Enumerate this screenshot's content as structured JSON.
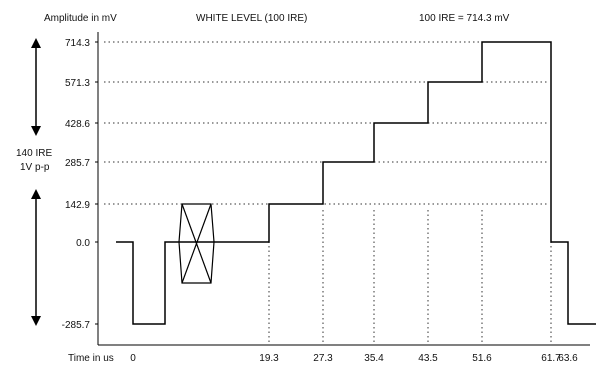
{
  "header": {
    "y_axis_label": "Amplitude in mV",
    "title": "WHITE LEVEL (100 IRE)",
    "equation": "100 IRE = 714.3 mV"
  },
  "x_axis_label": "Time in us",
  "side_label": {
    "line1": "140 IRE",
    "line2": "1V p-p"
  },
  "chart_data": {
    "type": "line",
    "y_ticks": [
      "714.3",
      "571.3",
      "428.6",
      "285.7",
      "142.9",
      "0.0",
      "-285.7"
    ],
    "x_ticks": [
      "0",
      "19.3",
      "27.3",
      "35.4",
      "43.5",
      "51.6",
      "61.7",
      "63.6"
    ],
    "ylim": [
      -285.7,
      714.3
    ],
    "staircase_levels": [
      0.0,
      142.9,
      285.7,
      428.6,
      571.3,
      714.3
    ],
    "sync_level": -285.7,
    "colorburst_amplitude": 142.9,
    "grid": "dotted"
  }
}
